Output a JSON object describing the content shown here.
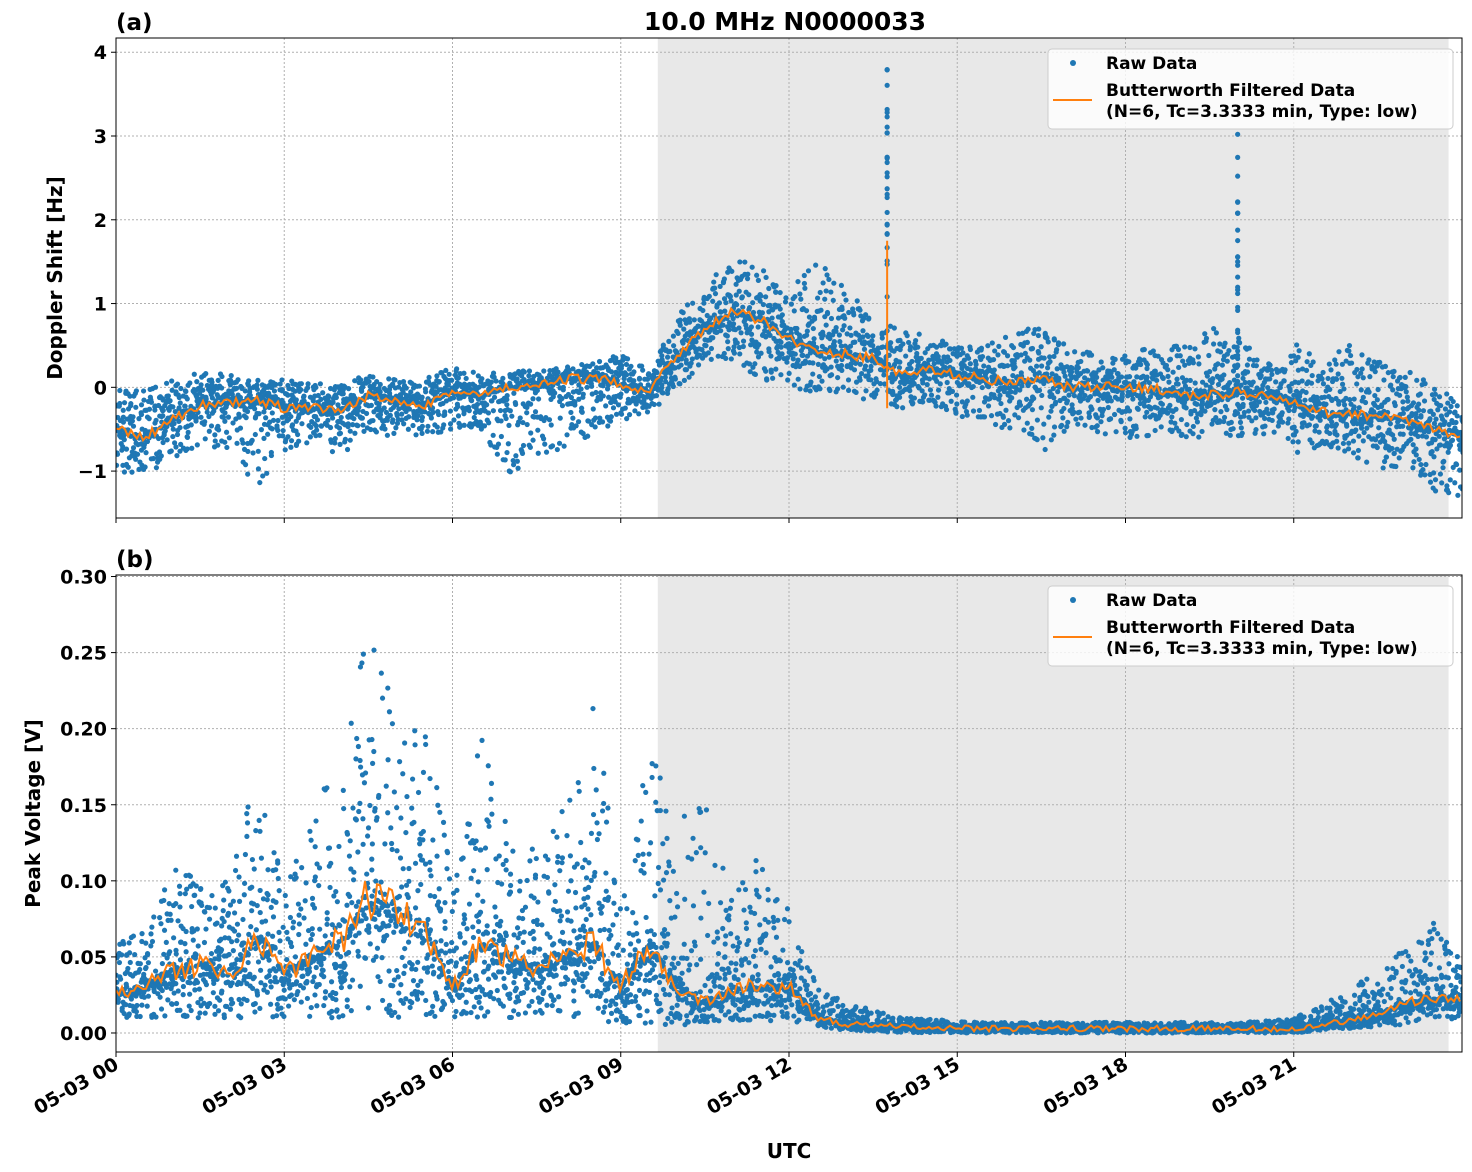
{
  "title": "10.0 MHz N0000033",
  "colors": {
    "raw": "#1f77b4",
    "filtered": "#ff7f0e",
    "shade": "#e8e8e8"
  },
  "chart_data": [
    {
      "type": "scatter",
      "panel_label": "(a)",
      "ylabel": "Doppler Shift [Hz]",
      "xlabel": "",
      "xlim_hours": [
        0,
        24
      ],
      "ylim": [
        -1.56,
        4.17
      ],
      "yticks": [
        -1,
        0,
        1,
        2,
        3,
        4
      ],
      "ytick_labels": [
        "−1",
        "0",
        "1",
        "2",
        "3",
        "4"
      ],
      "grid": true,
      "legend_position": "top-right",
      "shaded_interval_hours": [
        9.66,
        23.76
      ],
      "legend": [
        "Raw Data",
        "Butterworth Filtered Data",
        "(N=6, Tc=3.3333 min, Type: low)"
      ],
      "x_hours": [
        0,
        0.5,
        1,
        1.5,
        2,
        2.5,
        3,
        3.5,
        4,
        4.5,
        5,
        5.5,
        6,
        6.5,
        7,
        7.5,
        8,
        8.5,
        9,
        9.5,
        10,
        10.5,
        11,
        11.5,
        12,
        12.5,
        13,
        13.5,
        14,
        14.5,
        15,
        15.5,
        16,
        16.5,
        17,
        17.5,
        18,
        18.5,
        19,
        19.5,
        20,
        20.5,
        21,
        21.5,
        22,
        22.5,
        23,
        23.5,
        24
      ],
      "series": [
        {
          "name": "Butterworth Filtered Data",
          "values": [
            -0.5,
            -0.6,
            -0.4,
            -0.2,
            -0.2,
            -0.15,
            -0.25,
            -0.25,
            -0.3,
            -0.1,
            -0.15,
            -0.2,
            -0.05,
            -0.1,
            0.0,
            0.0,
            0.1,
            0.1,
            0.05,
            -0.05,
            0.4,
            0.7,
            0.9,
            0.8,
            0.6,
            0.4,
            0.4,
            0.35,
            0.15,
            0.2,
            0.15,
            0.1,
            0.05,
            0.1,
            0.0,
            0.0,
            0.0,
            0.0,
            -0.1,
            -0.1,
            -0.05,
            -0.1,
            -0.2,
            -0.3,
            -0.3,
            -0.35,
            -0.4,
            -0.5,
            -0.6
          ]
        },
        {
          "name": "Raw Data",
          "min": [
            -1.0,
            -1.05,
            -0.85,
            -0.7,
            -0.75,
            -1.25,
            -0.8,
            -0.7,
            -0.8,
            -0.55,
            -0.6,
            -0.6,
            -0.5,
            -0.5,
            -1.1,
            -0.8,
            -0.75,
            -0.55,
            -0.4,
            -0.3,
            0.0,
            0.3,
            0.3,
            0.1,
            0.0,
            -0.1,
            -0.05,
            -0.2,
            -0.25,
            -0.2,
            -0.4,
            -0.4,
            -0.6,
            -0.8,
            -0.5,
            -0.6,
            -0.6,
            -0.6,
            -0.6,
            -0.6,
            -0.6,
            -0.6,
            -0.8,
            -0.7,
            -0.8,
            -1.05,
            -0.9,
            -1.3,
            -1.3
          ],
          "max": [
            0.05,
            0.0,
            0.1,
            0.2,
            0.15,
            0.1,
            0.1,
            0.05,
            0.05,
            0.15,
            0.1,
            0.1,
            0.25,
            0.15,
            0.2,
            0.2,
            0.25,
            0.3,
            0.4,
            0.2,
            0.9,
            1.2,
            1.6,
            1.4,
            1.2,
            1.5,
            1.2,
            0.8,
            0.7,
            0.6,
            0.5,
            0.5,
            0.7,
            0.7,
            0.5,
            0.4,
            0.4,
            0.5,
            0.5,
            0.75,
            0.6,
            0.3,
            0.6,
            0.3,
            0.55,
            0.3,
            0.2,
            0.1,
            -0.3
          ],
          "spikes": [
            [
              13.75,
              3.9
            ],
            [
              20.0,
              3.1
            ]
          ]
        }
      ]
    },
    {
      "type": "scatter",
      "panel_label": "(b)",
      "ylabel": "Peak Voltage [V]",
      "xlabel": "UTC",
      "xlim_hours": [
        0,
        24
      ],
      "ylim": [
        -0.0125,
        0.301
      ],
      "yticks": [
        0,
        0.05,
        0.1,
        0.15,
        0.2,
        0.25,
        0.3
      ],
      "ytick_labels": [
        "0.00",
        "0.05",
        "0.10",
        "0.15",
        "0.20",
        "0.25",
        "0.30"
      ],
      "xticks_hours": [
        0,
        3,
        6,
        9,
        12,
        15,
        18,
        21
      ],
      "xtick_labels": [
        "05-03 00",
        "05-03 03",
        "05-03 06",
        "05-03 09",
        "05-03 12",
        "05-03 15",
        "05-03 18",
        "05-03 21"
      ],
      "grid": true,
      "legend_position": "top-right",
      "shaded_interval_hours": [
        9.66,
        23.76
      ],
      "legend": [
        "Raw Data",
        "Butterworth Filtered Data",
        "(N=6, Tc=3.3333 min, Type: low)"
      ],
      "x_hours": [
        0,
        0.5,
        1,
        1.5,
        2,
        2.5,
        3,
        3.5,
        4,
        4.5,
        5,
        5.5,
        6,
        6.5,
        7,
        7.5,
        8,
        8.5,
        9,
        9.5,
        10,
        10.5,
        11,
        11.5,
        12,
        12.5,
        13,
        13.5,
        14,
        14.5,
        15,
        15.5,
        16,
        16.5,
        17,
        17.5,
        18,
        18.5,
        19,
        19.5,
        20,
        20.5,
        21,
        21.5,
        22,
        22.5,
        23,
        23.5,
        24
      ],
      "series": [
        {
          "name": "Butterworth Filtered Data",
          "values": [
            0.025,
            0.03,
            0.04,
            0.045,
            0.04,
            0.06,
            0.04,
            0.05,
            0.06,
            0.09,
            0.08,
            0.07,
            0.03,
            0.06,
            0.05,
            0.04,
            0.05,
            0.06,
            0.03,
            0.06,
            0.03,
            0.02,
            0.03,
            0.03,
            0.03,
            0.01,
            0.006,
            0.005,
            0.004,
            0.004,
            0.003,
            0.003,
            0.003,
            0.003,
            0.003,
            0.003,
            0.003,
            0.003,
            0.003,
            0.003,
            0.003,
            0.003,
            0.003,
            0.006,
            0.008,
            0.012,
            0.02,
            0.022,
            0.022
          ]
        },
        {
          "name": "Raw Data",
          "min": [
            0.01,
            0.01,
            0.01,
            0.01,
            0.01,
            0.01,
            0.01,
            0.01,
            0.01,
            0.01,
            0.01,
            0.01,
            0.01,
            0.01,
            0.01,
            0.01,
            0.01,
            0.01,
            0.005,
            0.005,
            0.005,
            0.005,
            0.008,
            0.008,
            0.008,
            0.004,
            0.002,
            0.001,
            0.0,
            0.0,
            0.0,
            0.0,
            0.0,
            0.0,
            0.0,
            0.0,
            0.0,
            0.0,
            0.0,
            0.0,
            0.0,
            0.0,
            0.0,
            0.002,
            0.003,
            0.004,
            0.006,
            0.008,
            0.01
          ],
          "max": [
            0.06,
            0.07,
            0.11,
            0.1,
            0.1,
            0.17,
            0.09,
            0.16,
            0.17,
            0.28,
            0.21,
            0.21,
            0.1,
            0.2,
            0.13,
            0.12,
            0.15,
            0.22,
            0.1,
            0.19,
            0.14,
            0.15,
            0.09,
            0.12,
            0.08,
            0.03,
            0.02,
            0.015,
            0.01,
            0.009,
            0.008,
            0.007,
            0.007,
            0.007,
            0.007,
            0.007,
            0.007,
            0.007,
            0.007,
            0.007,
            0.007,
            0.008,
            0.01,
            0.02,
            0.03,
            0.04,
            0.06,
            0.08,
            0.045
          ]
        }
      ]
    }
  ]
}
